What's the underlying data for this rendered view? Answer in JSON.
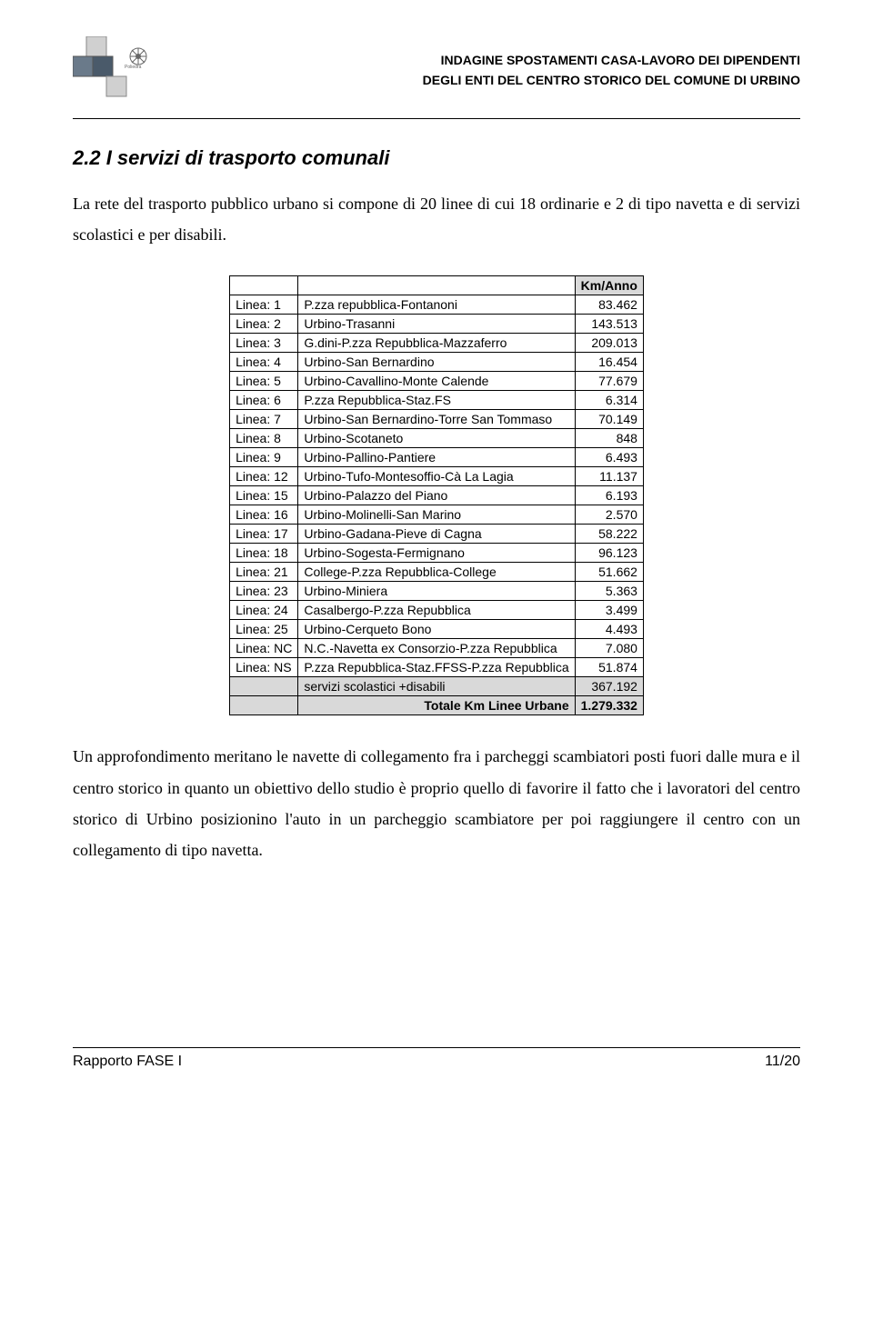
{
  "header": {
    "line1": "INDAGINE SPOSTAMENTI CASA-LAVORO DEI DIPENDENTI",
    "line2": "DEGLI ENTI DEL CENTRO STORICO DEL COMUNE DI URBINO"
  },
  "section": {
    "title": "2.2  I servizi di trasporto comunali",
    "intro": "La rete del trasporto pubblico urbano si compone di 20 linee di cui 18 ordinarie e 2 di tipo navetta e di servizi scolastici e per disabili."
  },
  "table": {
    "header_value": "Km/Anno",
    "rows": [
      {
        "line": "Linea: 1",
        "route": "P.zza repubblica-Fontanoni",
        "value": "83.462"
      },
      {
        "line": "Linea: 2",
        "route": "Urbino-Trasanni",
        "value": "143.513"
      },
      {
        "line": "Linea: 3",
        "route": "G.dini-P.zza Repubblica-Mazzaferro",
        "value": "209.013"
      },
      {
        "line": "Linea: 4",
        "route": "Urbino-San Bernardino",
        "value": "16.454"
      },
      {
        "line": "Linea: 5",
        "route": "Urbino-Cavallino-Monte Calende",
        "value": "77.679"
      },
      {
        "line": "Linea: 6",
        "route": "P.zza Repubblica-Staz.FS",
        "value": "6.314"
      },
      {
        "line": "Linea: 7",
        "route": "Urbino-San Bernardino-Torre San Tommaso",
        "value": "70.149"
      },
      {
        "line": "Linea: 8",
        "route": "Urbino-Scotaneto",
        "value": "848"
      },
      {
        "line": "Linea: 9",
        "route": "Urbino-Pallino-Pantiere",
        "value": "6.493"
      },
      {
        "line": "Linea: 12",
        "route": "Urbino-Tufo-Montesoffio-Cà La Lagia",
        "value": "11.137"
      },
      {
        "line": "Linea: 15",
        "route": "Urbino-Palazzo del Piano",
        "value": "6.193"
      },
      {
        "line": "Linea: 16",
        "route": "Urbino-Molinelli-San Marino",
        "value": "2.570"
      },
      {
        "line": "Linea: 17",
        "route": "Urbino-Gadana-Pieve di Cagna",
        "value": "58.222"
      },
      {
        "line": "Linea: 18",
        "route": "Urbino-Sogesta-Fermignano",
        "value": "96.123"
      },
      {
        "line": "Linea: 21",
        "route": "College-P.zza Repubblica-College",
        "value": "51.662"
      },
      {
        "line": "Linea: 23",
        "route": "Urbino-Miniera",
        "value": "5.363"
      },
      {
        "line": "Linea: 24",
        "route": "Casalbergo-P.zza Repubblica",
        "value": "3.499"
      },
      {
        "line": "Linea: 25",
        "route": "Urbino-Cerqueto Bono",
        "value": "4.493"
      },
      {
        "line": "Linea: NC",
        "route": "N.C.-Navetta ex Consorzio-P.zza Repubblica",
        "value": "7.080"
      },
      {
        "line": "Linea: NS",
        "route": "P.zza Repubblica-Staz.FFSS-P.zza Repubblica",
        "value": "51.874"
      }
    ],
    "subtotal": {
      "line": "",
      "route": "servizi scolastici +disabili",
      "value": "367.192"
    },
    "total": {
      "label": "Totale Km Linee Urbane",
      "value": "1.279.332"
    }
  },
  "outro": "Un approfondimento meritano le navette di collegamento fra i parcheggi scambiatori posti fuori dalle mura e il centro storico in quanto un obiettivo dello studio è proprio quello di favorire il fatto che i lavoratori del centro storico di Urbino posizionino l'auto in un parcheggio scambiatore per poi raggiungere il centro con un collegamento di tipo navetta.",
  "footer": {
    "left": "Rapporto FASE I",
    "right": "11/20"
  },
  "colors": {
    "text": "#000000",
    "background": "#ffffff",
    "shade": "#d9d9d9",
    "border": "#000000"
  }
}
